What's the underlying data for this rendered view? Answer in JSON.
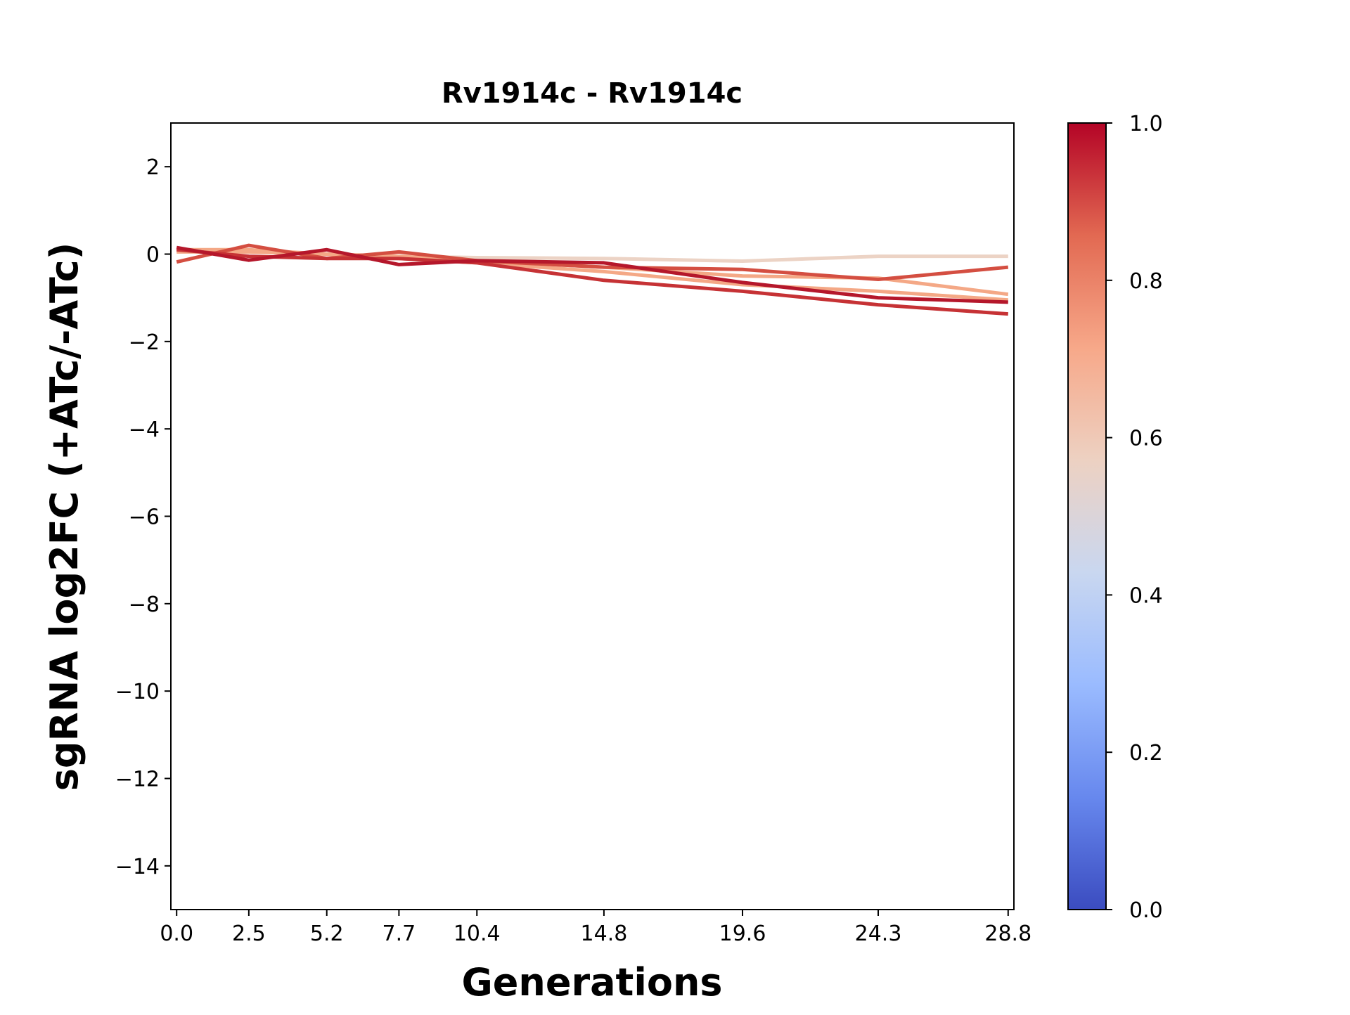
{
  "chart_data": {
    "type": "line",
    "title": "Rv1914c - Rv1914c",
    "xlabel": "Generations",
    "ylabel": "sgRNA log2FC (+ATc/-ATc)",
    "x": [
      0.0,
      2.5,
      5.2,
      7.7,
      10.4,
      14.8,
      19.6,
      24.3,
      28.8
    ],
    "xtick_labels": [
      "0.0",
      "2.5",
      "5.2",
      "7.7",
      "10.4",
      "14.8",
      "19.6",
      "24.3",
      "28.8"
    ],
    "xlim": [
      -0.2,
      29.0
    ],
    "ylim": [
      -15,
      3
    ],
    "yticks": [
      2,
      0,
      -2,
      -4,
      -6,
      -8,
      -10,
      -12,
      -14
    ],
    "ytick_labels": [
      "2",
      "0",
      "−2",
      "−4",
      "−6",
      "−8",
      "−10",
      "−12",
      "−14"
    ],
    "grid": false,
    "colormap": "coolwarm",
    "colorbar": {
      "range": [
        0.0,
        1.0
      ],
      "tick_labels": [
        "0.0",
        "0.2",
        "0.4",
        "0.6",
        "0.8",
        "1.0"
      ],
      "gradient": [
        "#3b4cc0",
        "#6788ee",
        "#9abbff",
        "#c9d7f0",
        "#edd1c2",
        "#f7a889",
        "#e26952",
        "#b40426"
      ]
    },
    "series": [
      {
        "color_value": 0.6,
        "color": "#ecd3c5",
        "values": [
          0.1,
          0.05,
          0.0,
          -0.05,
          -0.08,
          -0.1,
          -0.16,
          -0.05,
          -0.05
        ]
      },
      {
        "color_value": 0.75,
        "color": "#f4a886",
        "values": [
          0.05,
          0.05,
          0.0,
          -0.05,
          -0.15,
          -0.3,
          -0.5,
          -0.55,
          -0.92
        ]
      },
      {
        "color_value": 0.75,
        "color": "#f4a886",
        "values": [
          0.1,
          0.1,
          0.0,
          -0.1,
          -0.2,
          -0.4,
          -0.7,
          -0.85,
          -1.05
        ]
      },
      {
        "color_value": 0.88,
        "color": "#d44e41",
        "values": [
          -0.18,
          0.2,
          -0.1,
          0.05,
          -0.15,
          -0.3,
          -0.35,
          -0.58,
          -0.3
        ]
      },
      {
        "color_value": 0.93,
        "color": "#c63235",
        "values": [
          0.1,
          -0.05,
          -0.1,
          -0.1,
          -0.2,
          -0.6,
          -0.85,
          -1.16,
          -1.37
        ]
      },
      {
        "color_value": 1.0,
        "color": "#b5172b",
        "values": [
          0.15,
          -0.14,
          0.1,
          -0.24,
          -0.15,
          -0.2,
          -0.65,
          -1.0,
          -1.1
        ]
      }
    ]
  }
}
